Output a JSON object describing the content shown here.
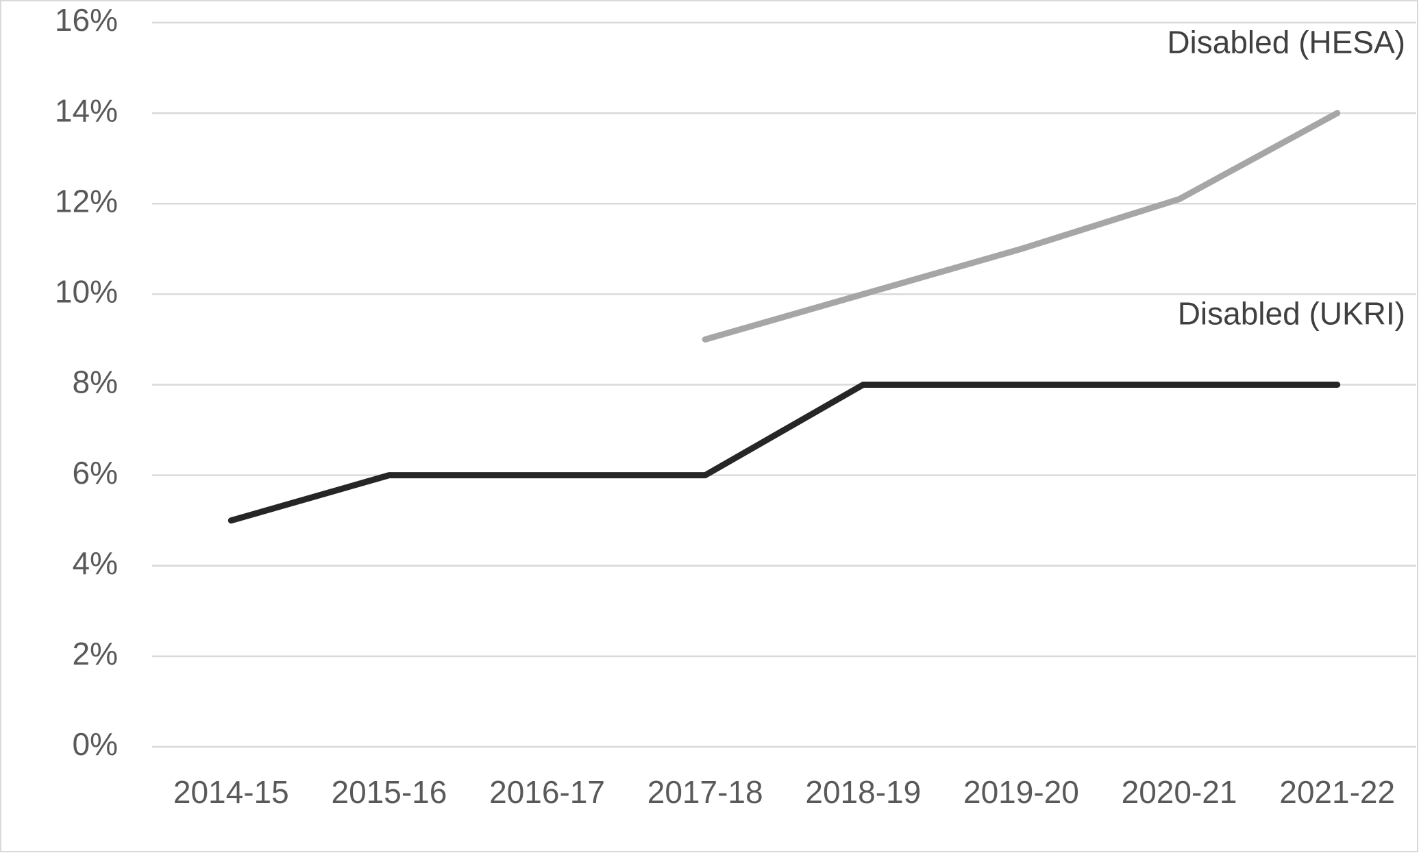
{
  "chart_data": {
    "type": "line",
    "categories": [
      "2014-15",
      "2015-16",
      "2016-17",
      "2017-18",
      "2018-19",
      "2019-20",
      "2020-21",
      "2021-22"
    ],
    "series": [
      {
        "name": "Disabled (UKRI)",
        "color": "#262626",
        "values": [
          5,
          6,
          6,
          6,
          8,
          8,
          8,
          8
        ]
      },
      {
        "name": "Disabled (HESA)",
        "color": "#a6a6a6",
        "values": [
          null,
          null,
          null,
          9,
          10,
          11,
          12.1,
          14
        ]
      }
    ],
    "ylim": [
      0,
      16
    ],
    "yticks": [
      {
        "value": 0,
        "label": "0%"
      },
      {
        "value": 2,
        "label": "2%"
      },
      {
        "value": 4,
        "label": "4%"
      },
      {
        "value": 6,
        "label": "6%"
      },
      {
        "value": 8,
        "label": "8%"
      },
      {
        "value": 10,
        "label": "10%"
      },
      {
        "value": 12,
        "label": "12%"
      },
      {
        "value": 14,
        "label": "14%"
      },
      {
        "value": 16,
        "label": "16%"
      }
    ],
    "grid": true
  }
}
